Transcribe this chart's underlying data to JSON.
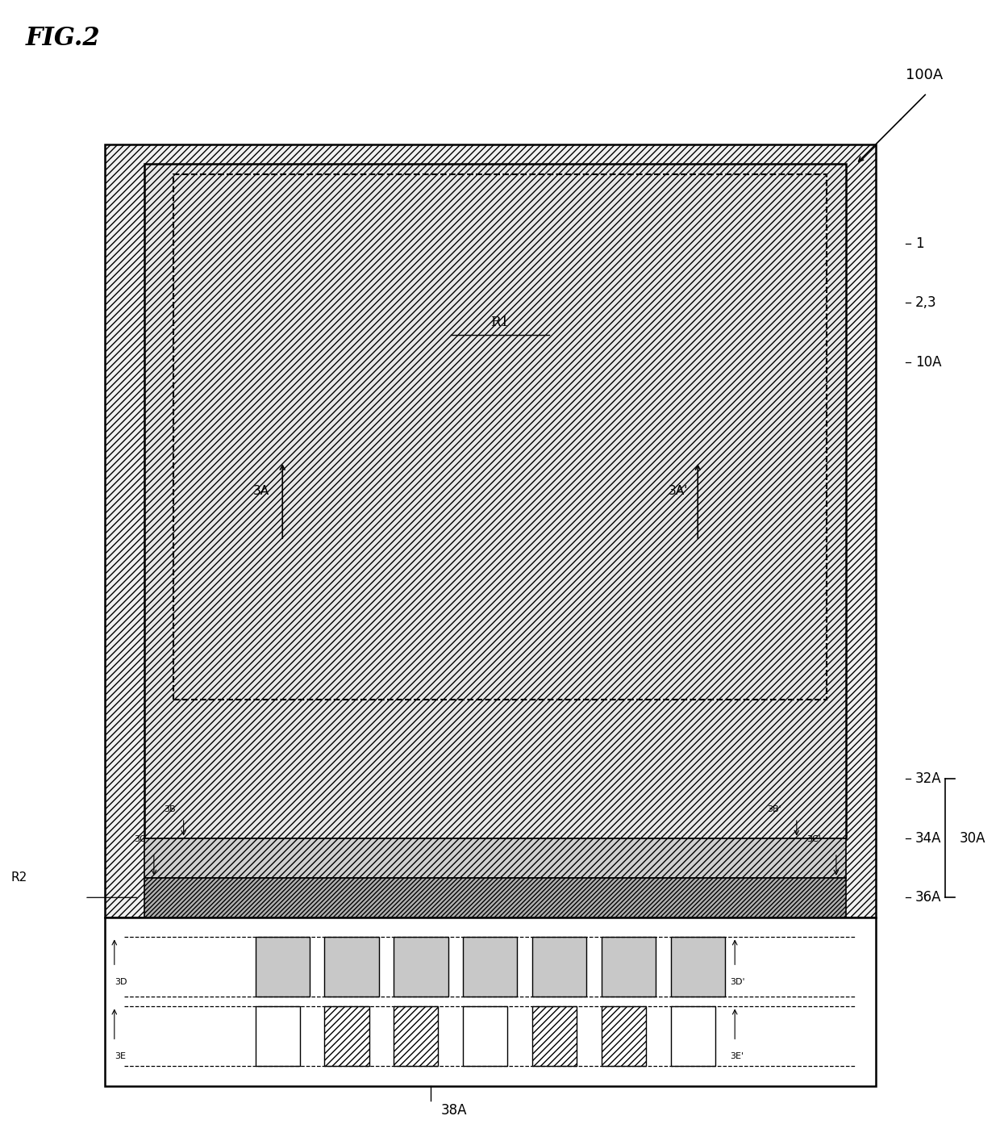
{
  "title": "FIG.2",
  "bg_color": "#ffffff",
  "fig_width": 12.4,
  "fig_height": 14.14,
  "label_100A": "100A",
  "label_1": "1",
  "label_23": "2,3",
  "label_10A": "10A",
  "label_R1": "R1",
  "label_3A": "3A",
  "label_3Ap": "3A'",
  "label_32A": "32A",
  "label_30A": "30A",
  "label_34A": "34A",
  "label_36A": "36A",
  "label_38A": "38A",
  "label_3B": "3B",
  "label_3Bp": "3B'",
  "label_3C": "3C",
  "label_3Cp": "3C'",
  "label_3D": "3D",
  "label_3Dp": "3D'",
  "label_3E": "3E",
  "label_3Ep": "3E'",
  "label_R2": "R2",
  "hatch_light": "////",
  "hatch_dense": "////",
  "hatch_cross": "xxxx"
}
